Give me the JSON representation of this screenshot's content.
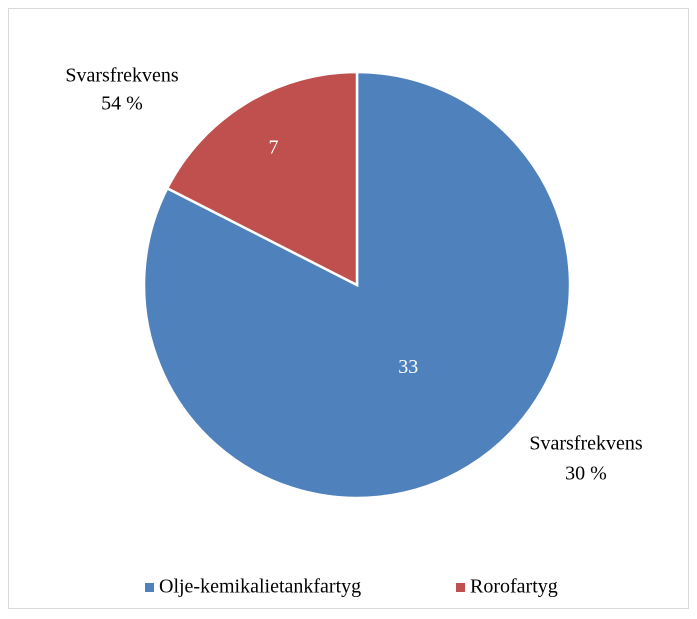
{
  "chart_data": {
    "type": "pie",
    "categories": [
      "Olje-kemikalietankfartyg",
      "Rorofartyg"
    ],
    "values": [
      33,
      7
    ],
    "colors": [
      "#4f81bd",
      "#c0504d"
    ],
    "outer_labels": [
      [
        "Svarsfrekvens",
        "30 %"
      ],
      [
        "Svarsfrekvens",
        "54 %"
      ]
    ],
    "legend": "bottom"
  }
}
